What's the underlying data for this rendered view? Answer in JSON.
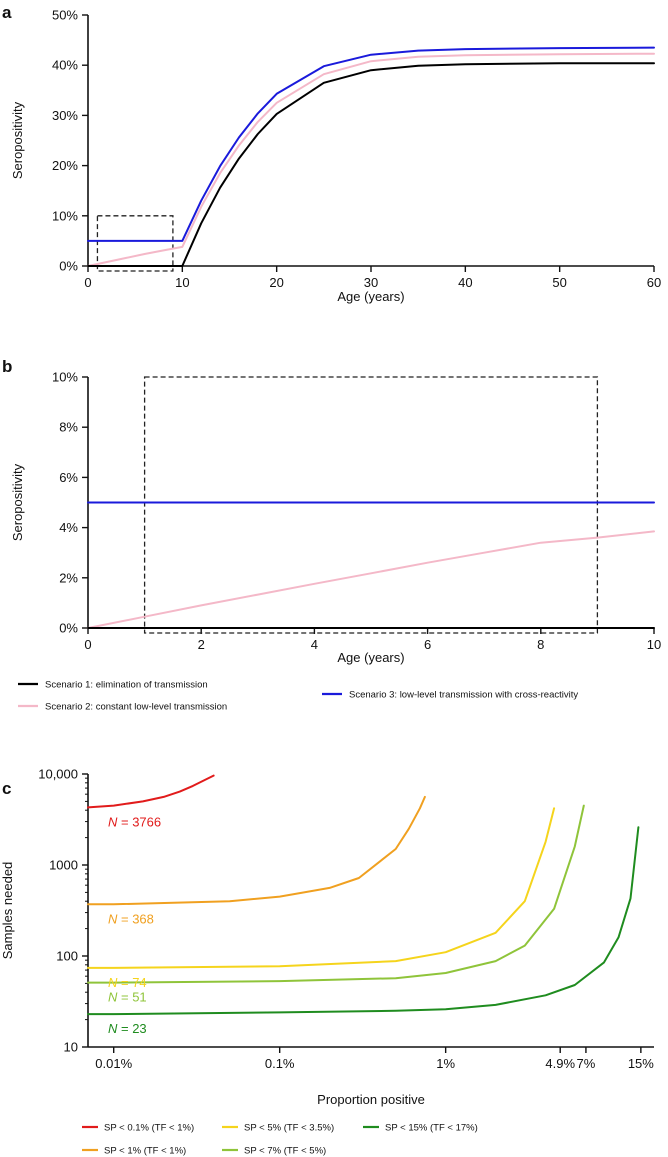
{
  "chart_data": [
    {
      "panel": "a",
      "type": "line",
      "xlabel": "Age (years)",
      "ylabel": "Seropositivity",
      "xlim": [
        0,
        60
      ],
      "ylim": [
        0,
        50
      ],
      "xticks": [
        0,
        10,
        20,
        30,
        40,
        50,
        60
      ],
      "yticks": [
        0,
        10,
        20,
        30,
        40,
        50
      ],
      "ytick_labels": [
        "0%",
        "10%",
        "20%",
        "30%",
        "40%",
        "50%"
      ],
      "grid": false,
      "series": [
        {
          "name": "Scenario 1: elimination of transmission",
          "color": "#000000",
          "x": [
            0,
            10,
            12,
            14,
            16,
            18,
            20,
            25,
            30,
            35,
            40,
            50,
            60
          ],
          "y": [
            0,
            0,
            8.5,
            15.6,
            21.4,
            26.3,
            30.3,
            36.5,
            39.0,
            39.9,
            40.2,
            40.4,
            40.4
          ]
        },
        {
          "name": "Scenario 2: constant low-level transmission",
          "color": "#f4b8c8",
          "x": [
            0,
            2,
            4,
            6,
            8,
            10,
            12,
            14,
            16,
            18,
            20,
            25,
            30,
            35,
            40,
            50,
            60
          ],
          "y": [
            0,
            0.8,
            1.6,
            2.4,
            3.1,
            3.8,
            11.8,
            18.5,
            24.0,
            28.7,
            32.5,
            38.2,
            40.8,
            41.7,
            42.0,
            42.2,
            42.3
          ]
        },
        {
          "name": "Scenario 3: low-level transmission with cross-reactivity",
          "color": "#1a1adb",
          "x": [
            0,
            10,
            12,
            14,
            16,
            18,
            20,
            25,
            30,
            35,
            40,
            50,
            60
          ],
          "y": [
            5,
            5,
            13.0,
            19.9,
            25.6,
            30.4,
            34.3,
            39.8,
            42.1,
            42.9,
            43.2,
            43.4,
            43.5
          ]
        }
      ],
      "annotations": [
        {
          "type": "dashed-box",
          "x": [
            1,
            9
          ],
          "y": [
            -1,
            10
          ]
        }
      ]
    },
    {
      "panel": "b",
      "type": "line",
      "xlabel": "Age (years)",
      "ylabel": "Seropositivity",
      "xlim": [
        0,
        10
      ],
      "ylim": [
        0,
        10
      ],
      "xticks": [
        0,
        2,
        4,
        6,
        8,
        10
      ],
      "yticks": [
        0,
        2,
        4,
        6,
        8,
        10
      ],
      "ytick_labels": [
        "0%",
        "2%",
        "4%",
        "6%",
        "8%",
        "10%"
      ],
      "grid": false,
      "series": [
        {
          "name": "Scenario 1: elimination of transmission",
          "color": "#000000",
          "x": [
            0,
            10
          ],
          "y": [
            0,
            0
          ]
        },
        {
          "name": "Scenario 2: constant low-level transmission",
          "color": "#f4b8c8",
          "x": [
            0,
            1,
            2,
            3,
            4,
            5,
            6,
            7,
            8,
            9,
            10
          ],
          "y": [
            0,
            0.45,
            0.9,
            1.33,
            1.76,
            2.18,
            2.6,
            3.0,
            3.4,
            3.6,
            3.85
          ]
        },
        {
          "name": "Scenario 3: low-level transmission with cross-reactivity",
          "color": "#1a1adb",
          "x": [
            0,
            10
          ],
          "y": [
            5,
            5
          ]
        }
      ],
      "annotations": [
        {
          "type": "dashed-box",
          "x": [
            1,
            9
          ],
          "y": [
            -0.2,
            10
          ]
        }
      ],
      "legend": {
        "placement": "bottom",
        "entries": [
          {
            "label": "Scenario 1: elimination of transmission",
            "color": "#000000"
          },
          {
            "label": "Scenario 2: constant low-level transmission",
            "color": "#f4b8c8"
          },
          {
            "label": "Scenario 3: low-level transmission with cross-reactivity",
            "color": "#1a1adb"
          }
        ]
      }
    },
    {
      "panel": "c",
      "type": "line",
      "xlabel": "Proportion positive",
      "ylabel": "Samples needed",
      "xscale": "log",
      "yscale": "log",
      "xlim": [
        0.007,
        18
      ],
      "ylim": [
        10,
        10000
      ],
      "xticks": [
        0.01,
        0.1,
        1,
        4.9,
        7,
        15
      ],
      "xtick_labels": [
        "0.01%",
        "0.1%",
        "1%",
        "4.9%",
        "7%",
        "15%"
      ],
      "yticks": [
        10,
        100,
        1000,
        10000
      ],
      "ytick_labels": [
        "10",
        "100",
        "1000",
        "10,000"
      ],
      "grid": false,
      "series": [
        {
          "name": "SP < 0.1% (TF < 1%)",
          "color": "#e11b1b",
          "n_label": "N = 3766",
          "x": [
            0.007,
            0.01,
            0.015,
            0.02,
            0.025,
            0.03,
            0.035,
            0.04
          ],
          "y": [
            4300,
            4500,
            5000,
            5600,
            6400,
            7400,
            8500,
            9600
          ]
        },
        {
          "name": "SP < 1% (TF < 1%)",
          "color": "#f0a020",
          "n_label": "N = 368",
          "x": [
            0.007,
            0.01,
            0.05,
            0.1,
            0.2,
            0.3,
            0.5,
            0.6,
            0.7,
            0.75
          ],
          "y": [
            370,
            370,
            400,
            450,
            560,
            720,
            1500,
            2500,
            4200,
            5600
          ]
        },
        {
          "name": "SP < 5% (TF < 3.5%)",
          "color": "#f5d41c",
          "n_label": "N = 74",
          "x": [
            0.007,
            0.01,
            0.1,
            0.5,
            1,
            2,
            3,
            4,
            4.5
          ],
          "y": [
            74,
            74,
            77,
            88,
            110,
            180,
            400,
            1800,
            4200
          ]
        },
        {
          "name": "SP < 7% (TF < 5%)",
          "color": "#8fc43a",
          "n_label": "N = 51",
          "x": [
            0.007,
            0.01,
            0.1,
            0.5,
            1,
            2,
            3,
            4.5,
            6,
            6.8
          ],
          "y": [
            51,
            51,
            53,
            57,
            65,
            88,
            130,
            330,
            1600,
            4500
          ]
        },
        {
          "name": "SP < 15% (TF < 17%)",
          "color": "#1f8c1f",
          "n_label": "N = 23",
          "x": [
            0.007,
            0.01,
            0.1,
            0.5,
            1,
            2,
            4,
            6,
            9,
            11,
            13,
            14.5
          ],
          "y": [
            23,
            23,
            24,
            25,
            26,
            29,
            37,
            48,
            85,
            160,
            430,
            2600
          ]
        }
      ],
      "legend": {
        "placement": "bottom",
        "entries": [
          {
            "label": "SP < 0.1% (TF < 1%)",
            "color": "#e11b1b"
          },
          {
            "label": "SP < 5% (TF < 3.5%)",
            "color": "#f5d41c"
          },
          {
            "label": "SP < 15% (TF < 17%)",
            "color": "#1f8c1f"
          },
          {
            "label": "SP < 1% (TF < 1%)",
            "color": "#f0a020"
          },
          {
            "label": "SP < 7% (TF < 5%)",
            "color": "#8fc43a"
          }
        ]
      }
    }
  ]
}
